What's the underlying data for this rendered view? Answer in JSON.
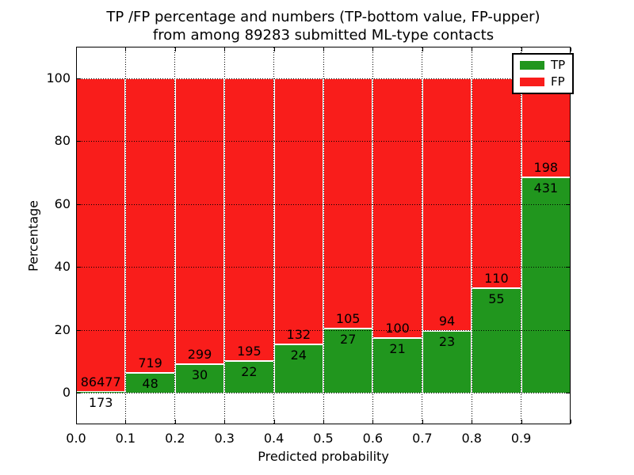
{
  "title": {
    "line1": "TP /FP percentage and numbers (TP-bottom value, FP-upper)",
    "line2": "from among 89283 submitted ML-type contacts"
  },
  "axes": {
    "xlabel": "Predicted probability",
    "ylabel": "Percentage",
    "xtick_labels": [
      "0.0",
      "0.1",
      "0.2",
      "0.3",
      "0.4",
      "0.5",
      "0.6",
      "0.7",
      "0.8",
      "0.9"
    ],
    "xtick_values": [
      0.0,
      0.1,
      0.2,
      0.3,
      0.4,
      0.5,
      0.6,
      0.7,
      0.8,
      0.9
    ],
    "ytick_labels": [
      "0",
      "20",
      "40",
      "60",
      "80",
      "100"
    ],
    "ytick_values": [
      0,
      20,
      40,
      60,
      80,
      100
    ],
    "xlim": [
      0.0,
      1.0
    ],
    "ylim": [
      -10,
      110
    ],
    "grid_style": "dotted"
  },
  "legend": {
    "position": "upper-right",
    "items": [
      {
        "label": "TP",
        "color": "#21961e"
      },
      {
        "label": "FP",
        "color": "#f91d1b"
      }
    ]
  },
  "chart_data": {
    "type": "bar",
    "stacked": true,
    "normalized_to_percent": 100,
    "bin_width": 0.1,
    "bin_starts": [
      0.0,
      0.1,
      0.2,
      0.3,
      0.4,
      0.5,
      0.6,
      0.7,
      0.8,
      0.9
    ],
    "series": [
      {
        "name": "TP",
        "position": "bottom",
        "color": "#21961e",
        "values": [
          173,
          48,
          30,
          22,
          24,
          27,
          21,
          23,
          55,
          431
        ]
      },
      {
        "name": "FP",
        "position": "top",
        "color": "#f91d1b",
        "values": [
          86477,
          719,
          299,
          195,
          132,
          105,
          100,
          94,
          110,
          198
        ]
      }
    ],
    "bar_edge_color": "#ffffff",
    "total_contacts_in_title": 89283
  },
  "colors": {
    "background": "#ffffff",
    "text": "#000000",
    "grid": "#000000",
    "tp_green": "#21961e",
    "fp_red": "#f91d1b"
  }
}
